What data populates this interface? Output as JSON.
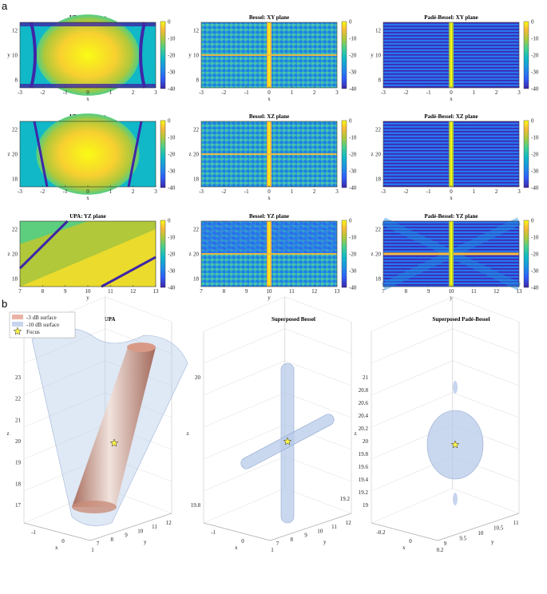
{
  "figure": {
    "label_a": "a",
    "label_b": "b"
  },
  "colorbar_ticks": [
    "0",
    "-10",
    "-20",
    "-30",
    "-40"
  ],
  "colormap": [
    "#3e26a8",
    "#2f5df8",
    "#1e90e4",
    "#10b8c8",
    "#47cf8e",
    "#b0c83a",
    "#f8ba3a",
    "#f9fb15"
  ],
  "panels_a": [
    {
      "title": "UPA: XY plane",
      "xlabel": "x",
      "ylabel": "y",
      "xticks": [
        "-3",
        "-2",
        "-1",
        "0",
        "1",
        "2",
        "3"
      ],
      "yticks": [
        "12",
        "10",
        "8"
      ],
      "kind": "upa_xy"
    },
    {
      "title": "Bessel: XY plane",
      "xlabel": "x",
      "ylabel": "y",
      "xticks": [
        "-3",
        "-2",
        "-1",
        "0",
        "1",
        "2",
        "3"
      ],
      "yticks": [
        "12",
        "10",
        "8"
      ],
      "kind": "bessel"
    },
    {
      "title": "Padé-Bessel: XY plane",
      "xlabel": "x",
      "ylabel": "y",
      "xticks": [
        "-3",
        "-2",
        "-1",
        "0",
        "1",
        "2",
        "3"
      ],
      "yticks": [
        "12",
        "10",
        "8"
      ],
      "kind": "pade"
    },
    {
      "title": "UPA: XZ plane",
      "xlabel": "x",
      "ylabel": "z",
      "xticks": [
        "-3",
        "-2",
        "-1",
        "0",
        "1",
        "2",
        "3"
      ],
      "yticks": [
        "22",
        "20",
        "18"
      ],
      "kind": "upa_xz"
    },
    {
      "title": "Bessel: XZ plane",
      "xlabel": "x",
      "ylabel": "z",
      "xticks": [
        "-3",
        "-2",
        "-1",
        "0",
        "1",
        "2",
        "3"
      ],
      "yticks": [
        "22",
        "20",
        "18"
      ],
      "kind": "bessel"
    },
    {
      "title": "Padé-Bessel: XZ plane",
      "xlabel": "x",
      "ylabel": "z",
      "xticks": [
        "-3",
        "-2",
        "-1",
        "0",
        "1",
        "2",
        "3"
      ],
      "yticks": [
        "22",
        "20",
        "18"
      ],
      "kind": "pade"
    },
    {
      "title": "UPA: YZ plane",
      "xlabel": "y",
      "ylabel": "z",
      "xticks": [
        "7",
        "8",
        "9",
        "10",
        "11",
        "12",
        "13"
      ],
      "yticks": [
        "22",
        "20",
        "18"
      ],
      "kind": "upa_yz"
    },
    {
      "title": "Bessel: YZ plane",
      "xlabel": "y",
      "ylabel": "z",
      "xticks": [
        "7",
        "8",
        "9",
        "10",
        "11",
        "12",
        "13"
      ],
      "yticks": [
        "22",
        "20",
        "18"
      ],
      "kind": "bessel_yz"
    },
    {
      "title": "Padé-Bessel: YZ plane",
      "xlabel": "y",
      "ylabel": "z",
      "xticks": [
        "7",
        "8",
        "9",
        "10",
        "11",
        "12",
        "13"
      ],
      "yticks": [
        "22",
        "20",
        "18"
      ],
      "kind": "pade_yz"
    }
  ],
  "legend": {
    "items": [
      "-3 dB surface",
      "-10 dB surface",
      "Focus"
    ]
  },
  "panels_b": [
    {
      "title": "UPA",
      "zticks": [
        "23",
        "22",
        "21",
        "20",
        "19",
        "18",
        "17"
      ],
      "xticks": [
        "-1",
        "0",
        "1"
      ],
      "yticks": [
        "7",
        "8",
        "9",
        "10",
        "11",
        "12"
      ],
      "xlabel": "x",
      "ylabel": "y",
      "zlabel": "z"
    },
    {
      "title": "Superposed Bessel",
      "zticks": [
        "20",
        "19.8"
      ],
      "xticks": [
        "-1",
        "0",
        "1"
      ],
      "yticks": [
        "7",
        "8",
        "9",
        "10",
        "11",
        "12"
      ],
      "xlabel": "x",
      "ylabel": "y",
      "zlabel": "z",
      "extra_z": "19.2"
    },
    {
      "title": "Superposed Padé-Bessel",
      "zticks": [
        "21",
        "20.8",
        "20.6",
        "20.4",
        "20.2",
        "20",
        "19.8",
        "19.6",
        "19.4",
        "19.2",
        "19"
      ],
      "xticks": [
        "-0.2",
        "0",
        "0.2"
      ],
      "yticks": [
        "9",
        "9.5",
        "10",
        "10.5",
        "11"
      ],
      "xlabel": "x",
      "ylabel": "y",
      "zlabel": "z"
    }
  ]
}
